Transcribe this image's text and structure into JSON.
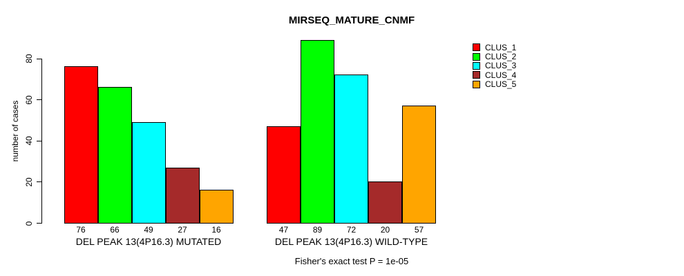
{
  "chart_data": {
    "type": "bar",
    "title": "MIRSEQ_MATURE_CNMF",
    "ylabel": "number of cases",
    "xlabel": "",
    "ylim": [
      0,
      89
    ],
    "yticks": [
      0,
      20,
      40,
      60,
      80
    ],
    "grid": false,
    "legend_position": "top-right",
    "categories": [
      "CLUS_1",
      "CLUS_2",
      "CLUS_3",
      "CLUS_4",
      "CLUS_5"
    ],
    "series_colors": [
      "#FF0000",
      "#00FF00",
      "#00FFFF",
      "#A52A2A",
      "#FFA500"
    ],
    "groups": [
      {
        "label": "DEL PEAK 13(4P16.3) MUTATED",
        "values": [
          76,
          66,
          49,
          27,
          16
        ]
      },
      {
        "label": "DEL PEAK 13(4P16.3) WILD-TYPE",
        "values": [
          47,
          89,
          72,
          20,
          57
        ]
      }
    ],
    "annotation": "Fisher's exact test P = 1e-05"
  }
}
